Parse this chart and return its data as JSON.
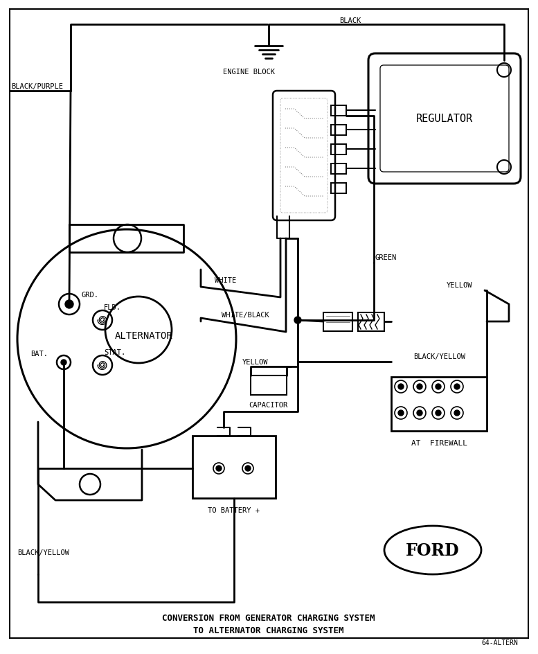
{
  "bg": "#ffffff",
  "lc": "#000000",
  "title1": "CONVERSION FROM GENERATOR CHARGING SYSTEM",
  "title2": "TO ALTERNATOR CHARGING SYSTEM",
  "code": "64-ALTERN",
  "L": {
    "alternator": "ALTERNATOR",
    "regulator": "REGULATOR",
    "engine_block": "ENGINE BLOCK",
    "capacitor": "CAPACITOR",
    "at_firewall": "AT  FIREWALL",
    "to_battery": "TO BATTERY +",
    "ford": "FORD",
    "grd": "GRD.",
    "fld": "FLD.",
    "bat": "BAT.",
    "stat": "STAT.",
    "black_purple": "BLACK/PURPLE",
    "black": "BLACK",
    "white": "WHITE",
    "white_black": "WHITE/BLACK",
    "green": "GREEN",
    "yellow_l": "YELLOW",
    "yellow_r": "YELLOW",
    "by_left": "BLACK/YELLOW",
    "by_right": "BLACK/YELLOW"
  }
}
